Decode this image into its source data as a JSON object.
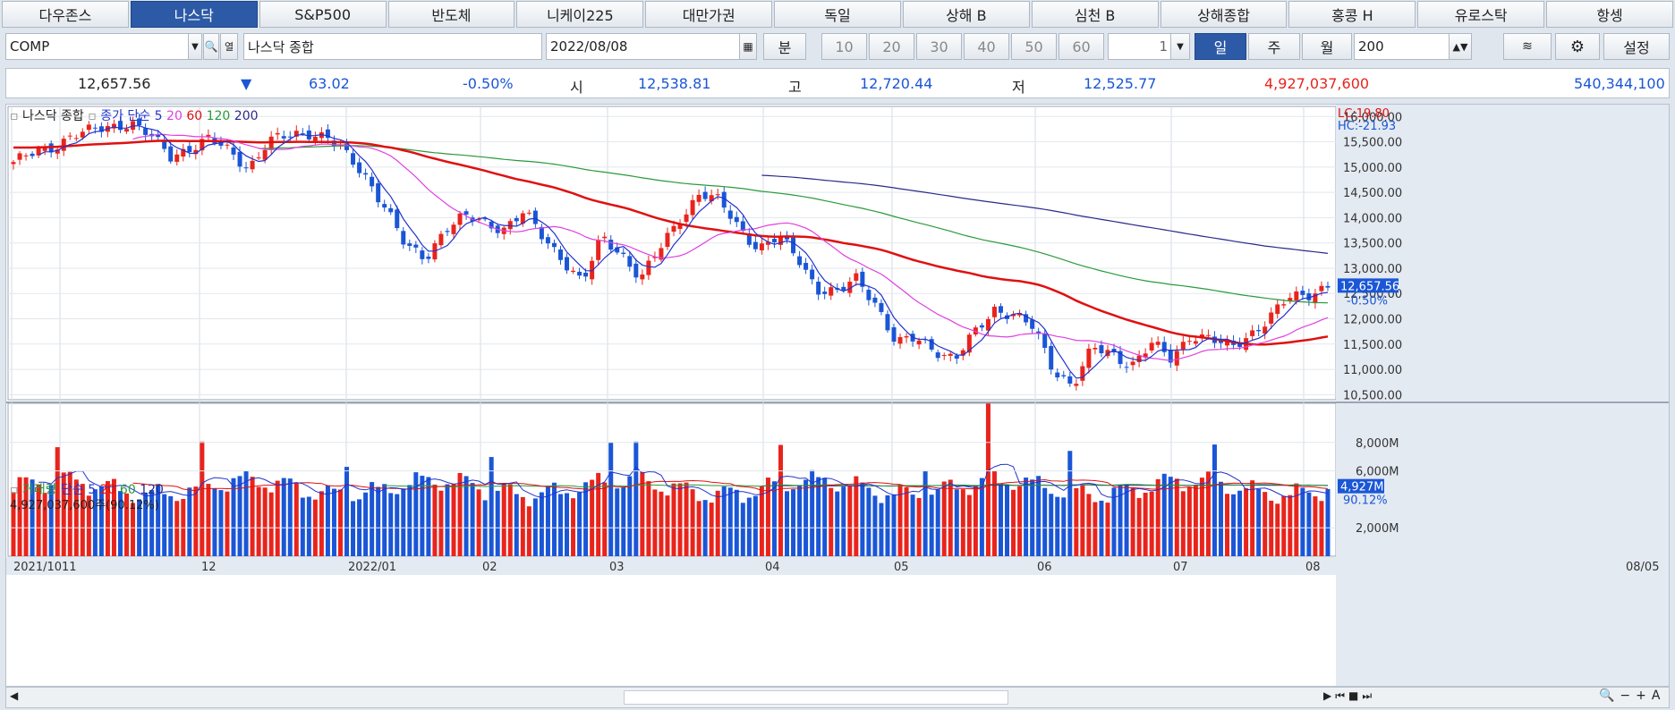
{
  "tabs": [
    "다우존스",
    "나스닥",
    "S&P500",
    "반도체",
    "니케이225",
    "대만가권",
    "독일",
    "상해 B",
    "심천 B",
    "상해종합",
    "홍콩 H",
    "유로스탁",
    "항셍"
  ],
  "active_tab": 1,
  "toolbar": {
    "symbol": "COMP",
    "name": "나스닥 종합",
    "date": "2022/08/08",
    "min_label": "분",
    "intervals": [
      "10",
      "20",
      "30",
      "40",
      "50",
      "60"
    ],
    "unit": "1",
    "day": "일",
    "week": "주",
    "month": "월",
    "count": "200",
    "settings": "설정",
    "yeol": "열"
  },
  "quote": {
    "price": "12,657.56",
    "arrow": "▼",
    "change": "63.02",
    "pct": "-0.50%",
    "open_label": "시",
    "open": "12,538.81",
    "high_label": "고",
    "high": "12,720.44",
    "low_label": "저",
    "low": "12,525.77",
    "volume": "4,927,037,600",
    "amount": "540,344,100"
  },
  "price_panel": {
    "title": "나스닥 종합",
    "ma_label": "종가 단순",
    "periods": [
      "5",
      "20",
      "60",
      "120",
      "200"
    ],
    "lc": "LC:19.80",
    "hc": "HC:-21.93",
    "last_price": "12,657.56",
    "last_pct": "-0.50%",
    "yticks": [
      "16,000.00",
      "15,500.00",
      "15,000.00",
      "14,500.00",
      "14,000.00",
      "13,500.00",
      "13,000.00",
      "12,500.00",
      "12,000.00",
      "11,500.00",
      "11,000.00",
      "10,500.00"
    ]
  },
  "volume_panel": {
    "title": "거래량",
    "ma_label": "단순",
    "periods": [
      "5",
      "20",
      "60",
      "120"
    ],
    "info": "4,927,037,600주(90.12%)",
    "yticks": [
      "8,000M",
      "6,000M",
      "2,000M"
    ],
    "last_vol": "4,927M",
    "last_pct": "90.12%"
  },
  "xaxis": [
    "2021/10",
    "11",
    "12",
    "2022/01",
    "02",
    "03",
    "04",
    "05",
    "06",
    "07",
    "08"
  ],
  "xaxis_right": "08/05",
  "colors": {
    "up": "#e8241c",
    "down": "#1a56d6",
    "ma5": "#2233cc",
    "ma20": "#e040e0",
    "ma60": "#e01010",
    "ma120": "#2a9a3a",
    "ma200": "#2a2a8a"
  },
  "chart_data": {
    "type": "candlestick",
    "x_labels": [
      "2021/10",
      "11",
      "12",
      "2022/01",
      "02",
      "03",
      "04",
      "05",
      "06",
      "07",
      "08"
    ],
    "ylim": [
      10400,
      16200
    ],
    "close_anchors": [
      15100,
      15250,
      15400,
      15650,
      15700,
      15800,
      15900,
      15600,
      15200,
      15400,
      15550,
      15300,
      15000,
      15500,
      15600,
      15700,
      15600,
      15200,
      14800,
      14200,
      13400,
      13200,
      13800,
      14000,
      13900,
      13800,
      14100,
      13600,
      13200,
      12700,
      13600,
      13300,
      12800,
      13400,
      14000,
      14500,
      14300,
      13800,
      13400,
      13600,
      13200,
      12600,
      12500,
      12800,
      12300,
      11500,
      11600,
      11400,
      11200,
      11700,
      12200,
      12100,
      11800,
      11000,
      10700,
      11400,
      11300,
      11100,
      11500,
      11200,
      11700,
      11600,
      11400,
      11700,
      12000,
      12400,
      12500,
      12660
    ],
    "volume_range": [
      0,
      10000
    ],
    "ma_periods": [
      5,
      20,
      60,
      120,
      200
    ]
  }
}
